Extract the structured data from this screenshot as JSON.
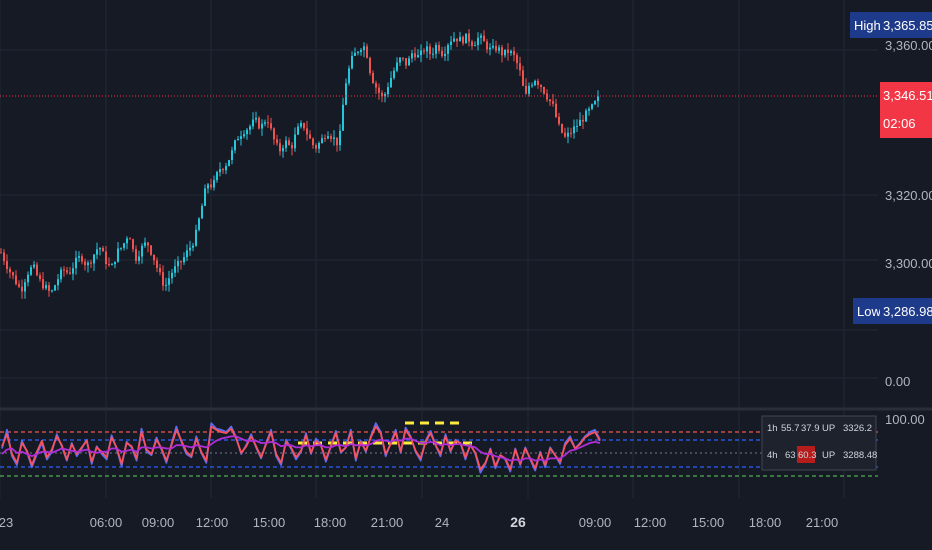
{
  "colors": {
    "background": "#161a25",
    "grid": "#232836",
    "candle_up": "#26c6da",
    "candle_down": "#ef5350",
    "price_line": "#f23645",
    "badge_bg": "#1e3a8a",
    "rsi_main": "#f7525f",
    "rsi_fast": "#5b6cf0",
    "rsi_signal": "#b02ed6",
    "overbought": "#ef5350",
    "upper_band": "#2962ff",
    "midline": "#787b86",
    "lower_band": "#2962ff",
    "oversold": "#4caf50",
    "yellow_marker": "#ffeb3b",
    "table_up": "#4caf50",
    "table_label": "#ffeb3b",
    "table_red_cell": "#b71c1c"
  },
  "price_axis": {
    "ticks": [
      "3,360.00",
      "3,320.00",
      "3,300.00"
    ],
    "tick_values": [
      3360,
      3320,
      3300
    ],
    "high": {
      "label": "High",
      "value": "3,365.85"
    },
    "low": {
      "label": "Low",
      "value": "3,286.98"
    },
    "current": {
      "price": "3,346.51",
      "countdown": "02:06"
    }
  },
  "indicator_axis": {
    "ticks": [
      "0.00",
      "100.00"
    ]
  },
  "time_axis": {
    "labels": [
      "23",
      "06:00",
      "09:00",
      "12:00",
      "15:00",
      "18:00",
      "21:00",
      "24",
      "26",
      "09:00",
      "12:00",
      "15:00",
      "18:00",
      "21:00"
    ],
    "bold_index": 8
  },
  "info_table": {
    "rows": [
      {
        "tf": "1h",
        "v1": "55.7",
        "v2": "37.9",
        "trend": "UP",
        "level": "3326.2"
      },
      {
        "tf": "4h",
        "v1": "63",
        "v2": "60.3",
        "trend": "UP",
        "level": "3288.48"
      }
    ]
  },
  "chart_data": [
    {
      "type": "candlestick",
      "x_range": [
        "23",
        "26 09:00"
      ],
      "y_range": [
        3280,
        3370
      ],
      "high": 3365.85,
      "low": 3286.98,
      "last": 3346.51,
      "path_points": [
        [
          0,
          3302
        ],
        [
          8,
          3297
        ],
        [
          14,
          3294
        ],
        [
          20,
          3291
        ],
        [
          26,
          3296
        ],
        [
          32,
          3298
        ],
        [
          38,
          3294
        ],
        [
          44,
          3292
        ],
        [
          50,
          3290
        ],
        [
          56,
          3294
        ],
        [
          62,
          3297
        ],
        [
          68,
          3296
        ],
        [
          74,
          3299
        ],
        [
          80,
          3301
        ],
        [
          86,
          3298
        ],
        [
          92,
          3301
        ],
        [
          98,
          3304
        ],
        [
          104,
          3300
        ],
        [
          110,
          3297
        ],
        [
          116,
          3302
        ],
        [
          122,
          3304
        ],
        [
          128,
          3308
        ],
        [
          134,
          3300
        ],
        [
          140,
          3303
        ],
        [
          146,
          3305
        ],
        [
          152,
          3301
        ],
        [
          158,
          3296
        ],
        [
          164,
          3292
        ],
        [
          170,
          3296
        ],
        [
          176,
          3298
        ],
        [
          182,
          3300
        ],
        [
          188,
          3303
        ],
        [
          194,
          3306
        ],
        [
          200,
          3314
        ],
        [
          206,
          3322
        ],
        [
          212,
          3321
        ],
        [
          218,
          3326
        ],
        [
          224,
          3327
        ],
        [
          230,
          3330
        ],
        [
          236,
          3335
        ],
        [
          242,
          3337
        ],
        [
          248,
          3338
        ],
        [
          254,
          3340
        ],
        [
          260,
          3338
        ],
        [
          266,
          3341
        ],
        [
          272,
          3335
        ],
        [
          278,
          3331
        ],
        [
          284,
          3334
        ],
        [
          290,
          3332
        ],
        [
          296,
          3337
        ],
        [
          302,
          3339
        ],
        [
          308,
          3335
        ],
        [
          314,
          3332
        ],
        [
          320,
          3334
        ],
        [
          326,
          3337
        ],
        [
          332,
          3335
        ],
        [
          338,
          3333
        ],
        [
          344,
          3350
        ],
        [
          350,
          3357
        ],
        [
          356,
          3360
        ],
        [
          362,
          3362
        ],
        [
          366,
          3359
        ],
        [
          370,
          3353
        ],
        [
          376,
          3349
        ],
        [
          382,
          3346
        ],
        [
          388,
          3351
        ],
        [
          394,
          3355
        ],
        [
          400,
          3358
        ],
        [
          406,
          3356
        ],
        [
          412,
          3360
        ],
        [
          418,
          3358
        ],
        [
          424,
          3361
        ],
        [
          430,
          3359
        ],
        [
          436,
          3362
        ],
        [
          442,
          3359
        ],
        [
          448,
          3363
        ],
        [
          454,
          3364
        ],
        [
          460,
          3363
        ],
        [
          466,
          3364
        ],
        [
          472,
          3362
        ],
        [
          478,
          3364
        ],
        [
          484,
          3362
        ],
        [
          490,
          3360
        ],
        [
          496,
          3361
        ],
        [
          502,
          3359
        ],
        [
          508,
          3360
        ],
        [
          514,
          3358
        ],
        [
          520,
          3353
        ],
        [
          524,
          3346
        ],
        [
          528,
          3350
        ],
        [
          534,
          3352
        ],
        [
          540,
          3350
        ],
        [
          546,
          3347
        ],
        [
          552,
          3344
        ],
        [
          558,
          3338
        ],
        [
          564,
          3335
        ],
        [
          568,
          3336
        ],
        [
          574,
          3338
        ],
        [
          580,
          3340
        ],
        [
          586,
          3342
        ],
        [
          592,
          3344
        ],
        [
          598,
          3346.51
        ]
      ]
    },
    {
      "type": "line",
      "y_range": [
        0,
        100
      ],
      "levels": {
        "overbought": 70,
        "upper": 62,
        "mid": 50,
        "lower": 38,
        "oversold": 30
      },
      "series": [
        {
          "values": [
            55,
            72,
            48,
            40,
            62,
            52,
            38,
            50,
            60,
            45,
            52,
            68,
            57,
            44,
            60,
            48,
            55,
            63,
            41,
            57,
            50,
            45,
            67,
            55,
            39,
            61,
            56,
            44,
            73,
            52,
            49,
            65,
            54,
            42,
            59,
            75,
            61,
            50,
            47,
            66,
            51,
            42,
            78,
            73,
            72,
            70,
            75,
            65,
            50,
            58,
            68,
            56,
            46,
            60,
            72,
            48,
            40,
            63,
            55,
            45,
            52,
            69,
            50,
            64,
            58,
            43,
            57,
            71,
            51,
            56,
            72,
            44,
            62,
            52,
            66,
            78,
            70,
            48,
            60,
            72,
            51,
            74,
            66,
            52,
            44,
            62,
            71,
            58,
            48,
            68,
            52,
            63,
            60,
            45,
            59,
            50,
            33,
            41,
            55,
            37,
            49,
            45,
            34,
            55,
            40,
            56,
            45,
            35,
            52,
            38,
            56,
            49,
            41,
            60,
            66,
            55,
            60,
            66,
            70,
            72,
            63
          ]
        },
        {
          "values": [
            57,
            68,
            50,
            42,
            60,
            53,
            40,
            52,
            62,
            47,
            54,
            66,
            58,
            45,
            59,
            50,
            56,
            62,
            43,
            56,
            52,
            47,
            65,
            56,
            41,
            60,
            57,
            46,
            70,
            54,
            50,
            63,
            55,
            44,
            58,
            72,
            62,
            52,
            48,
            64,
            52,
            44,
            75,
            72,
            70,
            69,
            73,
            64,
            51,
            57,
            66,
            57,
            47,
            59,
            70,
            50,
            42,
            61,
            56,
            47,
            53,
            67,
            51,
            62,
            58,
            45,
            57,
            69,
            52,
            56,
            70,
            46,
            61,
            53,
            65,
            75,
            69,
            50,
            59,
            70,
            52,
            72,
            65,
            53,
            46,
            61,
            69,
            58,
            50,
            66,
            53,
            62,
            60,
            47,
            58,
            51,
            36,
            42,
            54,
            39,
            49,
            46,
            36,
            54,
            41,
            55,
            46,
            37,
            51,
            40,
            55,
            49,
            43,
            58,
            64,
            55,
            59,
            65,
            68,
            70,
            62
          ]
        },
        {
          "values": [
            50,
            54,
            55,
            51,
            52,
            50,
            48,
            50,
            52,
            52,
            51,
            53,
            55,
            54,
            53,
            52,
            53,
            54,
            52,
            51,
            52,
            52,
            55,
            55,
            52,
            53,
            54,
            52,
            56,
            56,
            55,
            56,
            56,
            55,
            55,
            58,
            58,
            57,
            56,
            58,
            57,
            56,
            59,
            62,
            64,
            65,
            66,
            66,
            64,
            62,
            62,
            62,
            60,
            60,
            61,
            60,
            57,
            58,
            58,
            56,
            56,
            58,
            57,
            58,
            58,
            56,
            56,
            58,
            58,
            57,
            59,
            58,
            58,
            58,
            59,
            62,
            63,
            62,
            61,
            63,
            62,
            64,
            64,
            62,
            60,
            60,
            61,
            60,
            58,
            59,
            58,
            59,
            59,
            58,
            57,
            56,
            52,
            50,
            50,
            48,
            47,
            46,
            44,
            45,
            44,
            46,
            46,
            44,
            45,
            44,
            46,
            46,
            46,
            49,
            53,
            54,
            56,
            58,
            60,
            61,
            60
          ]
        }
      ]
    }
  ]
}
